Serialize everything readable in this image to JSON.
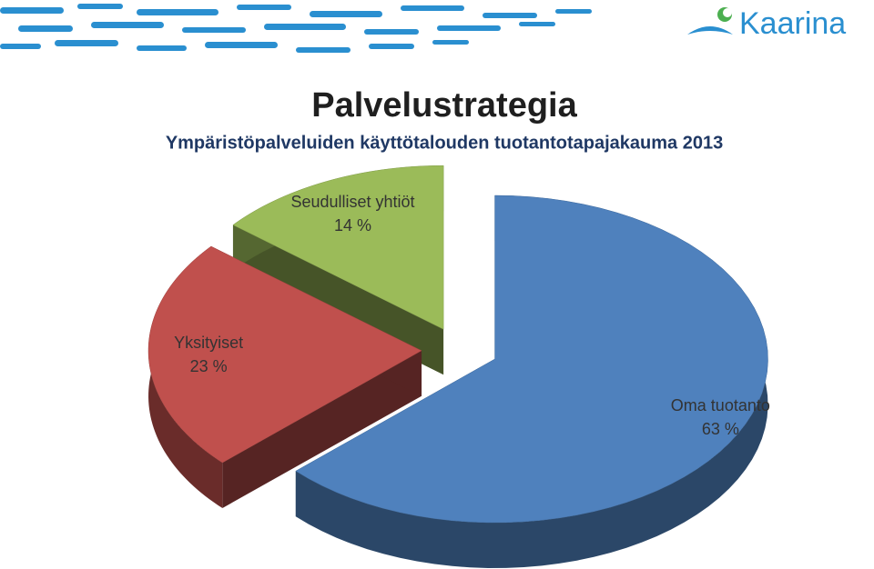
{
  "header": {
    "logo": "Kaarina"
  },
  "chart_data": {
    "type": "pie",
    "title": "Palvelustrategia",
    "subtitle": "Ympäristöpalveluiden käyttötalouden tuotantotapajakauma 2013",
    "categories": [
      "Oma tuotanto",
      "Yksityiset",
      "Seudulliset yhtiöt"
    ],
    "values": [
      63,
      23,
      14
    ],
    "value_labels": [
      "63 %",
      "23 %",
      "14 %"
    ],
    "colors": [
      "#4f81bd",
      "#c0504d",
      "#9bbb59"
    ]
  }
}
